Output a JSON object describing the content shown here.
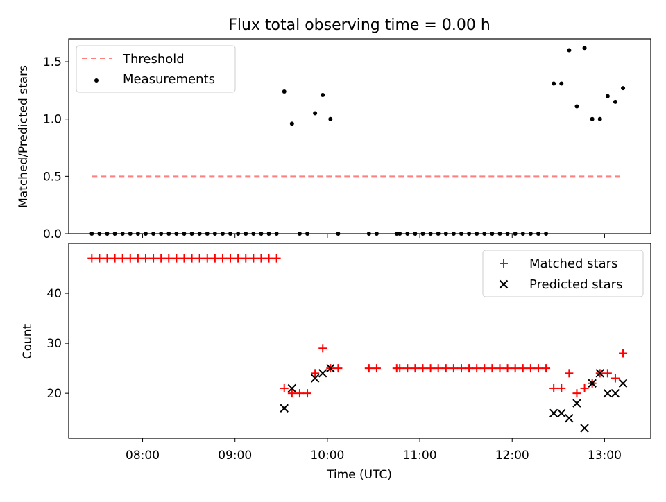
{
  "title": "Flux total observing time = 0.00 h",
  "chart_data": [
    {
      "type": "scatter",
      "ylabel": "Matched/Predicted stars",
      "xlabel": "",
      "ylim": [
        0,
        1.7
      ],
      "xlim": [
        "07:12",
        "13:30"
      ],
      "yticks": [
        "0.0",
        "0.5",
        "1.0",
        "1.5"
      ],
      "legend_position": "top-left",
      "threshold": {
        "name": "Threshold",
        "value": 0.5,
        "x_range": [
          "07:27",
          "13:10"
        ],
        "color": "#ff7f7f"
      },
      "measurements": {
        "name": "Measurements",
        "color": "#000000",
        "points": [
          [
            "07:27",
            0
          ],
          [
            "07:32",
            0
          ],
          [
            "07:37",
            0
          ],
          [
            "07:42",
            0
          ],
          [
            "07:47",
            0
          ],
          [
            "07:52",
            0
          ],
          [
            "07:57",
            0
          ],
          [
            "08:02",
            0
          ],
          [
            "08:07",
            0
          ],
          [
            "08:12",
            0
          ],
          [
            "08:17",
            0
          ],
          [
            "08:22",
            0
          ],
          [
            "08:27",
            0
          ],
          [
            "08:32",
            0
          ],
          [
            "08:37",
            0
          ],
          [
            "08:42",
            0
          ],
          [
            "08:47",
            0
          ],
          [
            "08:52",
            0
          ],
          [
            "08:57",
            0
          ],
          [
            "09:02",
            0
          ],
          [
            "09:07",
            0
          ],
          [
            "09:12",
            0
          ],
          [
            "09:17",
            0
          ],
          [
            "09:22",
            0
          ],
          [
            "09:27",
            0
          ],
          [
            "09:32",
            1.24
          ],
          [
            "09:37",
            0.96
          ],
          [
            "09:42",
            0
          ],
          [
            "09:47",
            0
          ],
          [
            "09:52",
            1.05
          ],
          [
            "09:57",
            1.21
          ],
          [
            "10:02",
            1.0
          ],
          [
            "10:07",
            0
          ],
          [
            "10:27",
            0
          ],
          [
            "10:32",
            0
          ],
          [
            "10:45",
            0
          ],
          [
            "10:47",
            0
          ],
          [
            "10:52",
            0
          ],
          [
            "10:57",
            0
          ],
          [
            "11:02",
            0
          ],
          [
            "11:07",
            0
          ],
          [
            "11:12",
            0
          ],
          [
            "11:17",
            0
          ],
          [
            "11:22",
            0
          ],
          [
            "11:27",
            0
          ],
          [
            "11:32",
            0
          ],
          [
            "11:37",
            0
          ],
          [
            "11:42",
            0
          ],
          [
            "11:47",
            0
          ],
          [
            "11:52",
            0
          ],
          [
            "11:57",
            0
          ],
          [
            "12:02",
            0
          ],
          [
            "12:07",
            0
          ],
          [
            "12:12",
            0
          ],
          [
            "12:17",
            0
          ],
          [
            "12:22",
            0
          ],
          [
            "12:27",
            1.31
          ],
          [
            "12:32",
            1.31
          ],
          [
            "12:37",
            1.6
          ],
          [
            "12:42",
            1.11
          ],
          [
            "12:47",
            1.62
          ],
          [
            "12:52",
            1.0
          ],
          [
            "12:57",
            1.0
          ],
          [
            "13:02",
            1.2
          ],
          [
            "13:07",
            1.15
          ],
          [
            "13:12",
            1.27
          ]
        ]
      }
    },
    {
      "type": "scatter",
      "ylabel": "Count",
      "xlabel": "Time (UTC)",
      "ylim": [
        11,
        50
      ],
      "xlim": [
        "07:12",
        "13:30"
      ],
      "yticks": [
        "20",
        "30",
        "40"
      ],
      "xticks": [
        "08:00",
        "09:00",
        "10:00",
        "11:00",
        "12:00",
        "13:00"
      ],
      "legend_position": "top-right",
      "series": [
        {
          "name": "Matched stars",
          "marker": "+",
          "color": "#ff0000",
          "points": [
            [
              "07:27",
              47
            ],
            [
              "07:32",
              47
            ],
            [
              "07:37",
              47
            ],
            [
              "07:42",
              47
            ],
            [
              "07:47",
              47
            ],
            [
              "07:52",
              47
            ],
            [
              "07:57",
              47
            ],
            [
              "08:02",
              47
            ],
            [
              "08:07",
              47
            ],
            [
              "08:12",
              47
            ],
            [
              "08:17",
              47
            ],
            [
              "08:22",
              47
            ],
            [
              "08:27",
              47
            ],
            [
              "08:32",
              47
            ],
            [
              "08:37",
              47
            ],
            [
              "08:42",
              47
            ],
            [
              "08:47",
              47
            ],
            [
              "08:52",
              47
            ],
            [
              "08:57",
              47
            ],
            [
              "09:02",
              47
            ],
            [
              "09:07",
              47
            ],
            [
              "09:12",
              47
            ],
            [
              "09:17",
              47
            ],
            [
              "09:22",
              47
            ],
            [
              "09:27",
              47
            ],
            [
              "09:32",
              21
            ],
            [
              "09:37",
              20
            ],
            [
              "09:42",
              20
            ],
            [
              "09:47",
              20
            ],
            [
              "09:52",
              24
            ],
            [
              "09:57",
              29
            ],
            [
              "10:02",
              25
            ],
            [
              "10:07",
              25
            ],
            [
              "10:27",
              25
            ],
            [
              "10:32",
              25
            ],
            [
              "10:45",
              25
            ],
            [
              "10:47",
              25
            ],
            [
              "10:52",
              25
            ],
            [
              "10:57",
              25
            ],
            [
              "11:02",
              25
            ],
            [
              "11:07",
              25
            ],
            [
              "11:12",
              25
            ],
            [
              "11:17",
              25
            ],
            [
              "11:22",
              25
            ],
            [
              "11:27",
              25
            ],
            [
              "11:32",
              25
            ],
            [
              "11:37",
              25
            ],
            [
              "11:42",
              25
            ],
            [
              "11:47",
              25
            ],
            [
              "11:52",
              25
            ],
            [
              "11:57",
              25
            ],
            [
              "12:02",
              25
            ],
            [
              "12:07",
              25
            ],
            [
              "12:12",
              25
            ],
            [
              "12:17",
              25
            ],
            [
              "12:22",
              25
            ],
            [
              "12:27",
              21
            ],
            [
              "12:32",
              21
            ],
            [
              "12:37",
              24
            ],
            [
              "12:42",
              20
            ],
            [
              "12:47",
              21
            ],
            [
              "12:52",
              22
            ],
            [
              "12:57",
              24
            ],
            [
              "13:02",
              24
            ],
            [
              "13:07",
              23
            ],
            [
              "13:12",
              28
            ]
          ]
        },
        {
          "name": "Predicted stars",
          "marker": "x",
          "color": "#000000",
          "points": [
            [
              "09:32",
              17
            ],
            [
              "09:37",
              21
            ],
            [
              "09:52",
              23
            ],
            [
              "09:57",
              24
            ],
            [
              "10:02",
              25
            ],
            [
              "12:27",
              16
            ],
            [
              "12:32",
              16
            ],
            [
              "12:37",
              15
            ],
            [
              "12:42",
              18
            ],
            [
              "12:47",
              13
            ],
            [
              "12:52",
              22
            ],
            [
              "12:57",
              24
            ],
            [
              "13:02",
              20
            ],
            [
              "13:07",
              20
            ],
            [
              "13:12",
              22
            ]
          ]
        }
      ]
    }
  ]
}
